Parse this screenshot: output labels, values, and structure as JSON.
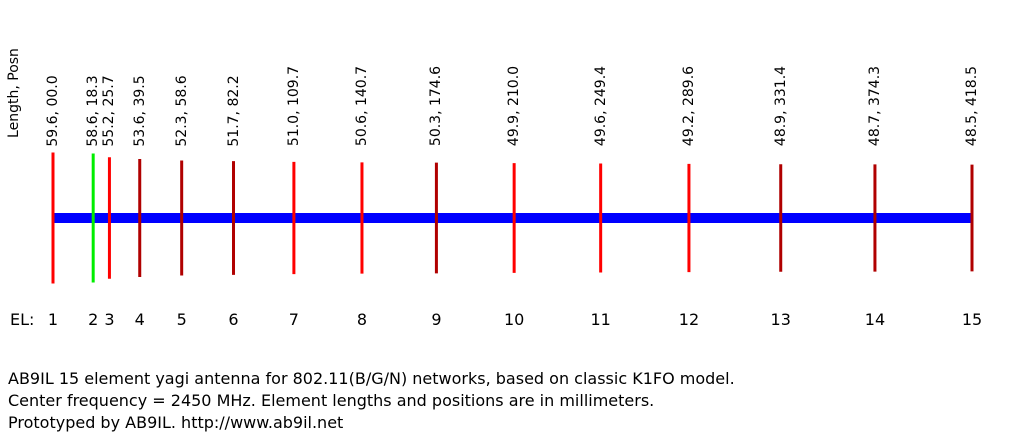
{
  "header": {
    "column_label": "Length, Posn"
  },
  "axis_prefix": "EL:",
  "colors": {
    "boom": "#0000ff",
    "element": "#ff0000",
    "element_dark": "#8b0000",
    "driven_element": "#00ee00"
  },
  "elements": [
    {
      "num": "1",
      "label": "59.6, 00.0",
      "length": 59.6,
      "posn": 0.0,
      "color": "#ff0000"
    },
    {
      "num": "2",
      "label": "58.6, 18.3",
      "length": 58.6,
      "posn": 18.3,
      "color": "#00ee00"
    },
    {
      "num": "3",
      "label": "55.2, 25.7",
      "length": 55.2,
      "posn": 25.7,
      "color": "#ff0000"
    },
    {
      "num": "4",
      "label": "53.6, 39.5",
      "length": 53.6,
      "posn": 39.5,
      "color": "#b00000"
    },
    {
      "num": "5",
      "label": "52.3, 58.6",
      "length": 52.3,
      "posn": 58.6,
      "color": "#b00000"
    },
    {
      "num": "6",
      "label": "51.7, 82.2",
      "length": 51.7,
      "posn": 82.2,
      "color": "#b00000"
    },
    {
      "num": "7",
      "label": "51.0, 109.7",
      "length": 51.0,
      "posn": 109.7,
      "color": "#ff0000"
    },
    {
      "num": "8",
      "label": "50.6, 140.7",
      "length": 50.6,
      "posn": 140.7,
      "color": "#ff0000"
    },
    {
      "num": "9",
      "label": "50.3, 174.6",
      "length": 50.3,
      "posn": 174.6,
      "color": "#b00000"
    },
    {
      "num": "10",
      "label": "49.9, 210.0",
      "length": 49.9,
      "posn": 210.0,
      "color": "#ff0000"
    },
    {
      "num": "11",
      "label": "49.6, 249.4",
      "length": 49.6,
      "posn": 249.4,
      "color": "#ff0000"
    },
    {
      "num": "12",
      "label": "49.2, 289.6",
      "length": 49.2,
      "posn": 289.6,
      "color": "#ff0000"
    },
    {
      "num": "13",
      "label": "48.9, 331.4",
      "length": 48.9,
      "posn": 331.4,
      "color": "#b00000"
    },
    {
      "num": "14",
      "label": "48.7, 374.3",
      "length": 48.7,
      "posn": 374.3,
      "color": "#b00000"
    },
    {
      "num": "15",
      "label": "48.5, 418.5",
      "length": 48.5,
      "posn": 418.5,
      "color": "#b00000"
    }
  ],
  "caption": {
    "line1": "AB9IL 15 element yagi antenna for 802.11(B/G/N) networks, based on classic K1FO model.",
    "line2": "Center frequency = 2450 MHz.  Element lengths and positions are in millimeters.",
    "line3": "Prototyped by AB9IL.  http://www.ab9il.net"
  }
}
